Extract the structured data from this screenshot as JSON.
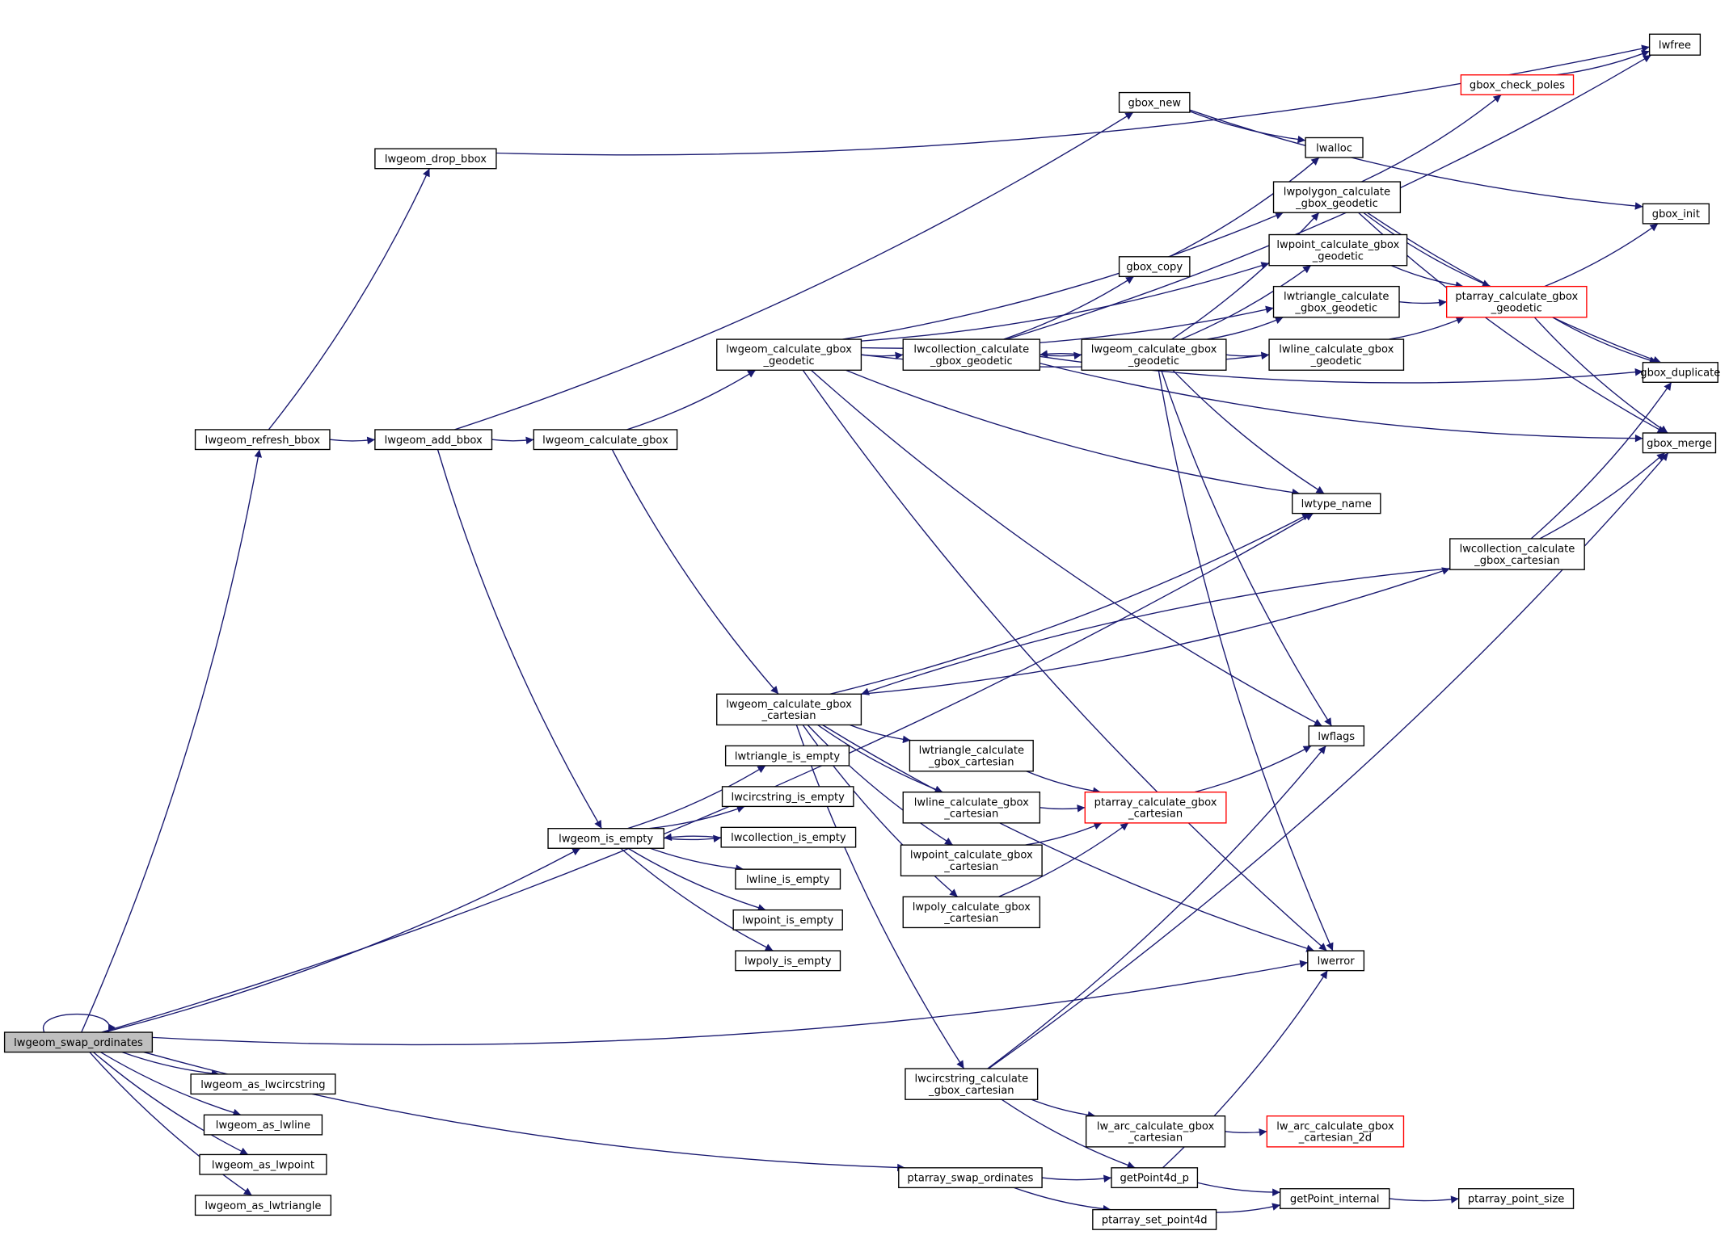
{
  "graph": {
    "edge_color": "#191970",
    "highlight_fill": "#bfbfbf",
    "incomplete_border_color": "#ff0000",
    "nodes": [
      {
        "id": "n1",
        "label": [
          "lwgeom_swap_ordinates"
        ],
        "style": "current"
      },
      {
        "id": "n2",
        "label": [
          "lwgeom_refresh_bbox"
        ]
      },
      {
        "id": "n3",
        "label": [
          "lwgeom_drop_bbox"
        ]
      },
      {
        "id": "n4",
        "label": [
          "lwgeom_add_bbox"
        ]
      },
      {
        "id": "n5",
        "label": [
          "lwgeom_calculate_gbox"
        ]
      },
      {
        "id": "n6",
        "label": [
          "lwgeom_calculate_gbox",
          "_geodetic"
        ]
      },
      {
        "id": "n7",
        "label": [
          "lwcollection_calculate",
          "_gbox_geodetic"
        ]
      },
      {
        "id": "n8",
        "label": [
          "lwgeom_calculate_gbox",
          "_geodetic"
        ]
      },
      {
        "id": "n9",
        "label": [
          "gbox_new"
        ]
      },
      {
        "id": "n10",
        "label": [
          "lwalloc"
        ]
      },
      {
        "id": "n11",
        "label": [
          "gbox_copy"
        ]
      },
      {
        "id": "n12",
        "label": [
          "lwpolygon_calculate",
          "_gbox_geodetic"
        ]
      },
      {
        "id": "n13",
        "label": [
          "lwpoint_calculate_gbox",
          "_geodetic"
        ]
      },
      {
        "id": "n14",
        "label": [
          "lwtriangle_calculate",
          "_gbox_geodetic"
        ]
      },
      {
        "id": "n15",
        "label": [
          "lwline_calculate_gbox",
          "_geodetic"
        ]
      },
      {
        "id": "n16",
        "label": [
          "gbox_check_poles"
        ],
        "style": "red"
      },
      {
        "id": "n17",
        "label": [
          "lwfree"
        ]
      },
      {
        "id": "n18",
        "label": [
          "gbox_init"
        ]
      },
      {
        "id": "n19",
        "label": [
          "ptarray_calculate_gbox",
          "_geodetic"
        ],
        "style": "red"
      },
      {
        "id": "n20",
        "label": [
          "gbox_duplicate"
        ]
      },
      {
        "id": "n21",
        "label": [
          "gbox_merge"
        ]
      },
      {
        "id": "n22",
        "label": [
          "lwtype_name"
        ]
      },
      {
        "id": "n23",
        "label": [
          "lwcollection_calculate",
          "_gbox_cartesian"
        ]
      },
      {
        "id": "n24",
        "label": [
          "lwgeom_calculate_gbox",
          "_cartesian"
        ]
      },
      {
        "id": "n25",
        "label": [
          "lwflags"
        ]
      },
      {
        "id": "n26",
        "label": [
          "lwtriangle_calculate",
          "_gbox_cartesian"
        ]
      },
      {
        "id": "n27",
        "label": [
          "lwline_calculate_gbox",
          "_cartesian"
        ]
      },
      {
        "id": "n28",
        "label": [
          "ptarray_calculate_gbox",
          "_cartesian"
        ],
        "style": "red"
      },
      {
        "id": "n29",
        "label": [
          "lwpoint_calculate_gbox",
          "_cartesian"
        ]
      },
      {
        "id": "n30",
        "label": [
          "lwpoly_calculate_gbox",
          "_cartesian"
        ]
      },
      {
        "id": "n31",
        "label": [
          "lwerror"
        ]
      },
      {
        "id": "n32",
        "label": [
          "lwtriangle_is_empty"
        ]
      },
      {
        "id": "n33",
        "label": [
          "lwcircstring_is_empty"
        ]
      },
      {
        "id": "n34",
        "label": [
          "lwcollection_is_empty"
        ]
      },
      {
        "id": "n35",
        "label": [
          "lwline_is_empty"
        ]
      },
      {
        "id": "n36",
        "label": [
          "lwpoint_is_empty"
        ]
      },
      {
        "id": "n37",
        "label": [
          "lwpoly_is_empty"
        ]
      },
      {
        "id": "n38",
        "label": [
          "lwgeom_is_empty"
        ]
      },
      {
        "id": "n39",
        "label": [
          "lwgeom_as_lwcircstring"
        ]
      },
      {
        "id": "n40",
        "label": [
          "lwgeom_as_lwline"
        ]
      },
      {
        "id": "n41",
        "label": [
          "lwgeom_as_lwpoint"
        ]
      },
      {
        "id": "n42",
        "label": [
          "lwgeom_as_lwtriangle"
        ]
      },
      {
        "id": "n43",
        "label": [
          "lwcircstring_calculate",
          "_gbox_cartesian"
        ]
      },
      {
        "id": "n44",
        "label": [
          "lw_arc_calculate_gbox",
          "_cartesian"
        ]
      },
      {
        "id": "n45",
        "label": [
          "lw_arc_calculate_gbox",
          "_cartesian_2d"
        ],
        "style": "red"
      },
      {
        "id": "n46",
        "label": [
          "ptarray_swap_ordinates"
        ]
      },
      {
        "id": "n47",
        "label": [
          "getPoint4d_p"
        ]
      },
      {
        "id": "n48",
        "label": [
          "ptarray_set_point4d"
        ]
      },
      {
        "id": "n49",
        "label": [
          "getPoint_internal"
        ]
      },
      {
        "id": "n50",
        "label": [
          "ptarray_point_size"
        ]
      }
    ],
    "edges": [
      [
        "n1",
        "n1"
      ],
      [
        "n1",
        "n2"
      ],
      [
        "n1",
        "n22"
      ],
      [
        "n1",
        "n38"
      ],
      [
        "n1",
        "n31"
      ],
      [
        "n1",
        "n39"
      ],
      [
        "n1",
        "n40"
      ],
      [
        "n1",
        "n41"
      ],
      [
        "n1",
        "n42"
      ],
      [
        "n1",
        "n46"
      ],
      [
        "n2",
        "n3"
      ],
      [
        "n2",
        "n4"
      ],
      [
        "n3",
        "n17"
      ],
      [
        "n4",
        "n9"
      ],
      [
        "n4",
        "n5"
      ],
      [
        "n4",
        "n38"
      ],
      [
        "n5",
        "n6"
      ],
      [
        "n5",
        "n24"
      ],
      [
        "n6",
        "n7"
      ],
      [
        "n6",
        "n12"
      ],
      [
        "n6",
        "n13"
      ],
      [
        "n6",
        "n14"
      ],
      [
        "n6",
        "n15"
      ],
      [
        "n6",
        "n22"
      ],
      [
        "n6",
        "n25"
      ],
      [
        "n6",
        "n31"
      ],
      [
        "n7",
        "n17"
      ],
      [
        "n7",
        "n11"
      ],
      [
        "n7",
        "n8"
      ],
      [
        "n7",
        "n20"
      ],
      [
        "n7",
        "n21"
      ],
      [
        "n8",
        "n7"
      ],
      [
        "n8",
        "n12"
      ],
      [
        "n8",
        "n13"
      ],
      [
        "n8",
        "n14"
      ],
      [
        "n8",
        "n15"
      ],
      [
        "n8",
        "n22"
      ],
      [
        "n8",
        "n25"
      ],
      [
        "n8",
        "n31"
      ],
      [
        "n9",
        "n10"
      ],
      [
        "n9",
        "n18"
      ],
      [
        "n11",
        "n10"
      ],
      [
        "n12",
        "n16"
      ],
      [
        "n12",
        "n19"
      ],
      [
        "n12",
        "n20"
      ],
      [
        "n12",
        "n21"
      ],
      [
        "n13",
        "n19"
      ],
      [
        "n14",
        "n19"
      ],
      [
        "n15",
        "n19"
      ],
      [
        "n16",
        "n17"
      ],
      [
        "n19",
        "n18"
      ],
      [
        "n19",
        "n20"
      ],
      [
        "n19",
        "n21"
      ],
      [
        "n23",
        "n20"
      ],
      [
        "n23",
        "n21"
      ],
      [
        "n23",
        "n24"
      ],
      [
        "n24",
        "n22"
      ],
      [
        "n24",
        "n23"
      ],
      [
        "n24",
        "n26"
      ],
      [
        "n24",
        "n27"
      ],
      [
        "n24",
        "n29"
      ],
      [
        "n24",
        "n30"
      ],
      [
        "n24",
        "n43"
      ],
      [
        "n24",
        "n31"
      ],
      [
        "n26",
        "n28"
      ],
      [
        "n27",
        "n28"
      ],
      [
        "n29",
        "n28"
      ],
      [
        "n30",
        "n28"
      ],
      [
        "n28",
        "n25"
      ],
      [
        "n38",
        "n32"
      ],
      [
        "n38",
        "n33"
      ],
      [
        "n38",
        "n34"
      ],
      [
        "n38",
        "n35"
      ],
      [
        "n38",
        "n36"
      ],
      [
        "n38",
        "n37"
      ],
      [
        "n34",
        "n38"
      ],
      [
        "n43",
        "n25"
      ],
      [
        "n43",
        "n21"
      ],
      [
        "n43",
        "n44"
      ],
      [
        "n43",
        "n47"
      ],
      [
        "n44",
        "n45"
      ],
      [
        "n46",
        "n47"
      ],
      [
        "n46",
        "n48"
      ],
      [
        "n47",
        "n31"
      ],
      [
        "n47",
        "n49"
      ],
      [
        "n48",
        "n49"
      ],
      [
        "n49",
        "n50"
      ]
    ]
  }
}
